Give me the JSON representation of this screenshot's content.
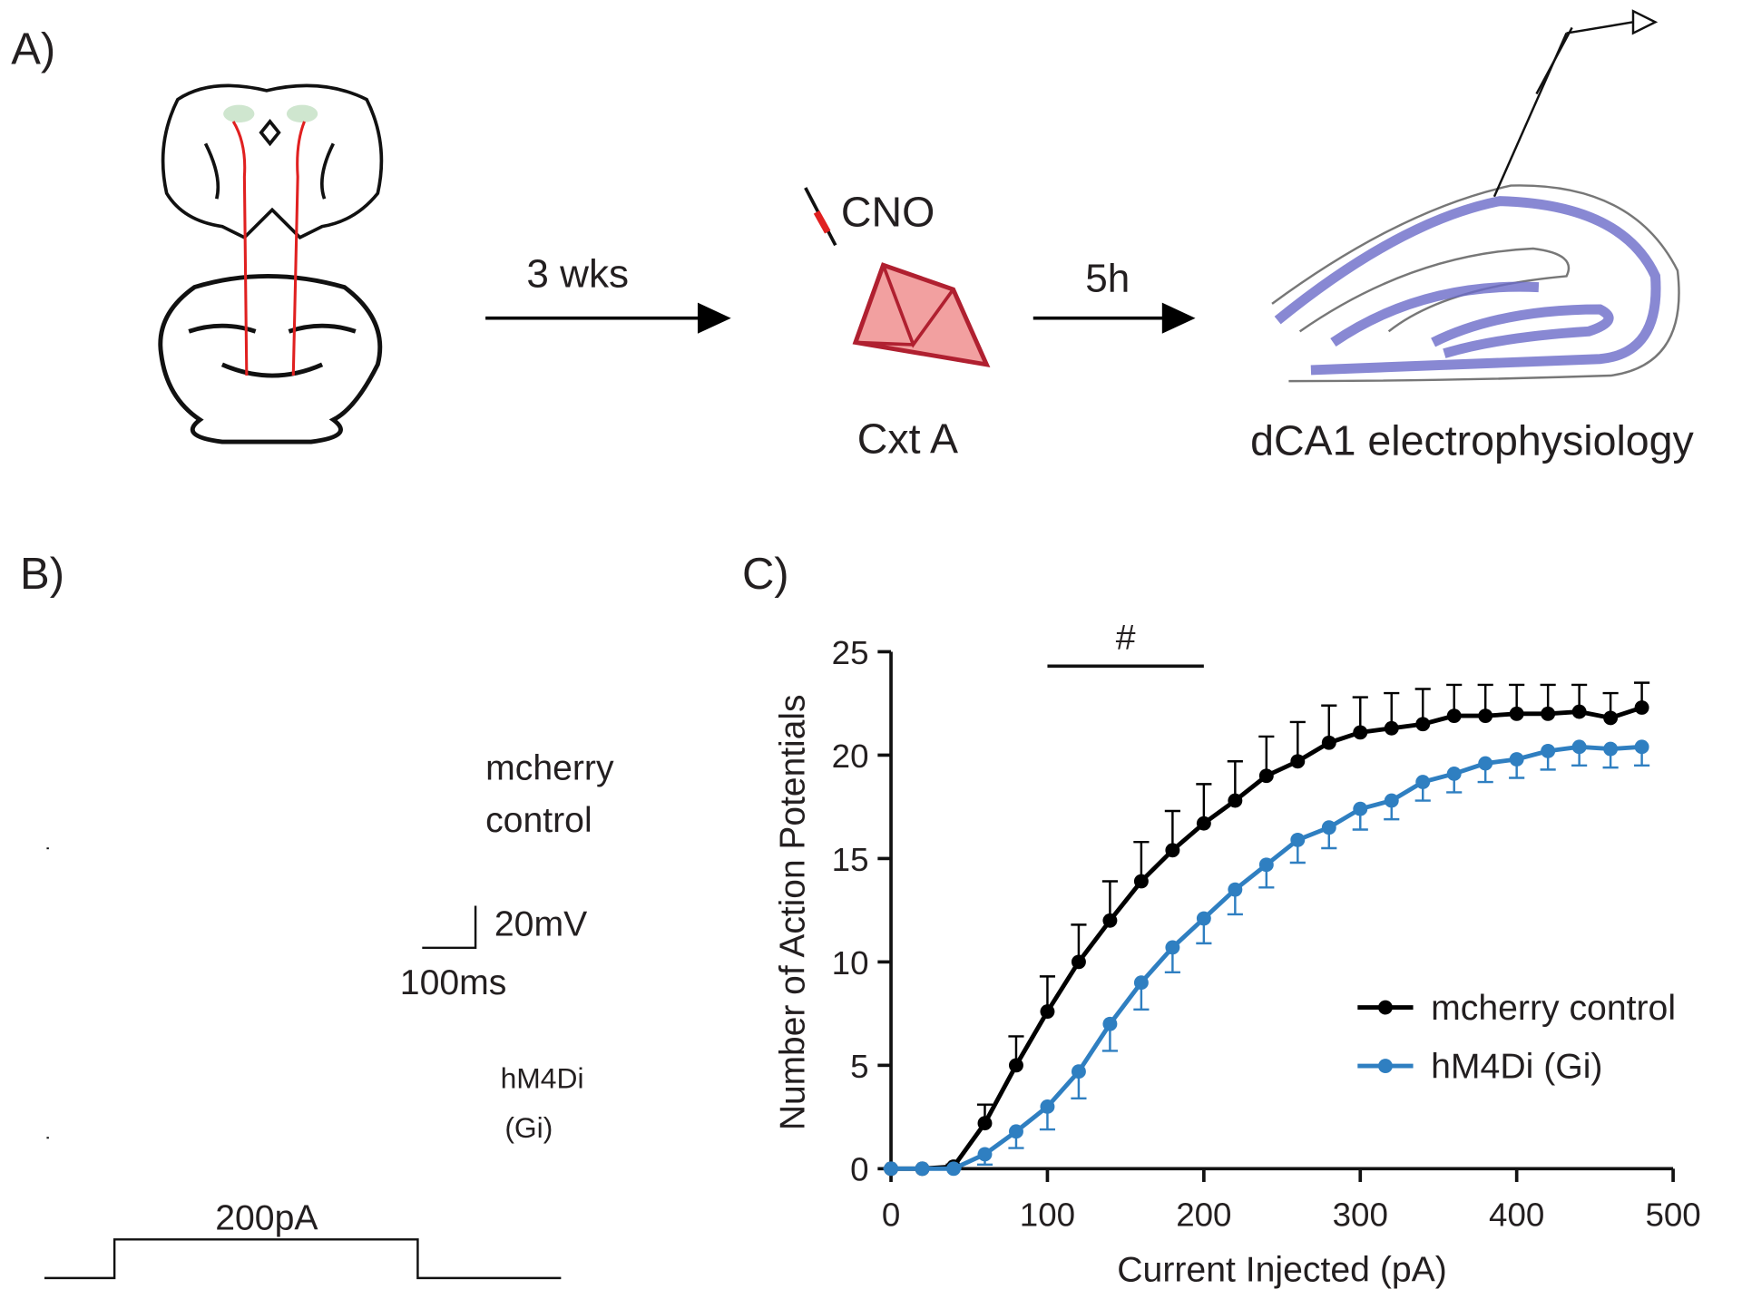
{
  "panel_a": {
    "label": "A)",
    "interval_1": "3 wks",
    "drug": "CNO",
    "context": "Cxt A",
    "interval_2": "5h",
    "recording": "dCA1 electrophysiology"
  },
  "panel_b": {
    "label": "B)",
    "trace_1": [
      "mcherry",
      "control"
    ],
    "scale_voltage": "20mV",
    "scale_time": "100ms",
    "trace_2": [
      "hM4Di",
      "(Gi)"
    ],
    "step": "200pA"
  },
  "chart_data": {
    "type": "line",
    "panel_label": "C)",
    "xlabel": "Current Injected (pA)",
    "ylabel": "Number of Action Potentials",
    "x": [
      0,
      20,
      40,
      60,
      80,
      100,
      120,
      140,
      160,
      180,
      200,
      220,
      240,
      260,
      280,
      300,
      320,
      340,
      360,
      380,
      400,
      420,
      440,
      460,
      480
    ],
    "series": [
      {
        "name": "mcherry control",
        "color": "#000000",
        "error_direction": "up",
        "values": [
          0,
          0,
          0.1,
          2.2,
          5.0,
          7.6,
          10.0,
          12.0,
          13.9,
          15.4,
          16.7,
          17.8,
          19.0,
          19.7,
          20.6,
          21.1,
          21.3,
          21.5,
          21.9,
          21.9,
          22.0,
          22.0,
          22.1,
          21.8,
          22.3
        ],
        "errors": [
          0,
          0,
          0.1,
          0.9,
          1.4,
          1.7,
          1.8,
          1.9,
          1.9,
          1.9,
          1.9,
          1.9,
          1.9,
          1.9,
          1.8,
          1.7,
          1.7,
          1.7,
          1.5,
          1.5,
          1.4,
          1.4,
          1.3,
          1.2,
          1.2
        ]
      },
      {
        "name": "hM4Di (Gi)",
        "color": "#2f7fc1",
        "error_direction": "down",
        "values": [
          0,
          0,
          0,
          0.7,
          1.8,
          3.0,
          4.7,
          7.0,
          9.0,
          10.7,
          12.1,
          13.5,
          14.7,
          15.9,
          16.5,
          17.4,
          17.8,
          18.7,
          19.1,
          19.6,
          19.8,
          20.2,
          20.4,
          20.3,
          20.4
        ],
        "errors": [
          0,
          0,
          0,
          0.5,
          0.8,
          1.1,
          1.3,
          1.3,
          1.3,
          1.2,
          1.2,
          1.2,
          1.1,
          1.1,
          1.0,
          1.0,
          0.9,
          0.9,
          0.9,
          0.9,
          0.9,
          0.9,
          0.9,
          0.9,
          0.9
        ]
      }
    ],
    "xlim": [
      0,
      500
    ],
    "xticks": [
      0,
      100,
      200,
      300,
      400,
      500
    ],
    "ylim": [
      0,
      25
    ],
    "yticks": [
      0,
      5,
      10,
      15,
      20,
      25
    ],
    "legend": "lower right",
    "significance": {
      "label": "#",
      "x": [
        100,
        200
      ]
    }
  }
}
